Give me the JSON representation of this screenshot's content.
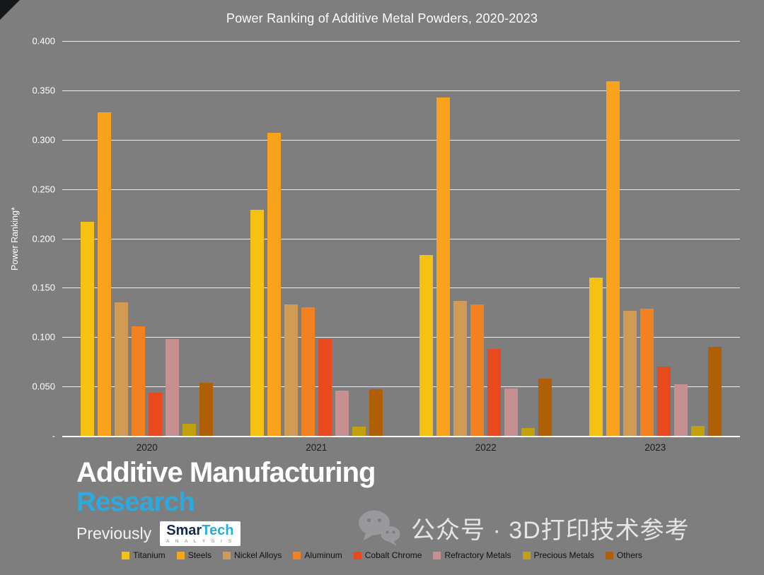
{
  "chart_data": {
    "type": "bar",
    "title": "Power Ranking of Additive Metal Powders, 2020-2023",
    "xlabel": "",
    "ylabel": "Power Ranking*",
    "ylim": [
      0,
      0.4
    ],
    "ytick_step": 0.05,
    "yticks": [
      "0.400",
      "0.350",
      "0.300",
      "0.250",
      "0.200",
      "0.150",
      "0.100",
      "0.050",
      "-"
    ],
    "grid": true,
    "legend_position": "bottom",
    "categories": [
      "2020",
      "2021",
      "2022",
      "2023"
    ],
    "series": [
      {
        "name": "Titanium",
        "color": "#F5C113",
        "values": [
          0.217,
          0.229,
          0.183,
          0.16
        ]
      },
      {
        "name": "Steels",
        "color": "#FAA21B",
        "values": [
          0.328,
          0.307,
          0.343,
          0.359
        ]
      },
      {
        "name": "Nickel Alloys",
        "color": "#D19B56",
        "values": [
          0.135,
          0.133,
          0.137,
          0.127
        ]
      },
      {
        "name": "Aluminum",
        "color": "#F28121",
        "values": [
          0.111,
          0.13,
          0.133,
          0.129
        ]
      },
      {
        "name": "Cobalt Chrome",
        "color": "#E8491F",
        "values": [
          0.044,
          0.098,
          0.088,
          0.07
        ]
      },
      {
        "name": "Refractory Metals",
        "color": "#C79090",
        "values": [
          0.098,
          0.046,
          0.048,
          0.052
        ]
      },
      {
        "name": "Precious Metals",
        "color": "#C3A00D",
        "values": [
          0.012,
          0.009,
          0.008,
          0.01
        ]
      },
      {
        "name": "Others",
        "color": "#B15F06",
        "values": [
          0.054,
          0.047,
          0.058,
          0.09
        ]
      }
    ]
  },
  "branding": {
    "line1": "Additive Manufacturing",
    "line2": "Research",
    "previously": "Previously",
    "logo_smar": "Smar",
    "logo_tech": "Tech",
    "logo_sub": "A N A L Y S I S"
  },
  "watermark": {
    "text": "公众号 · 3D打印技术参考"
  },
  "colors": {
    "background": "#7E7E7E",
    "gridline": "#FFFFFF",
    "title_text": "#FFFFFF",
    "axis_tick_text": "#FFFFFF",
    "category_text": "#1C1C1C",
    "legend_text": "#111111",
    "brand_blue": "#2BAAE2",
    "logo_navy": "#14294E",
    "watermark_text": "#EEEEEE"
  }
}
